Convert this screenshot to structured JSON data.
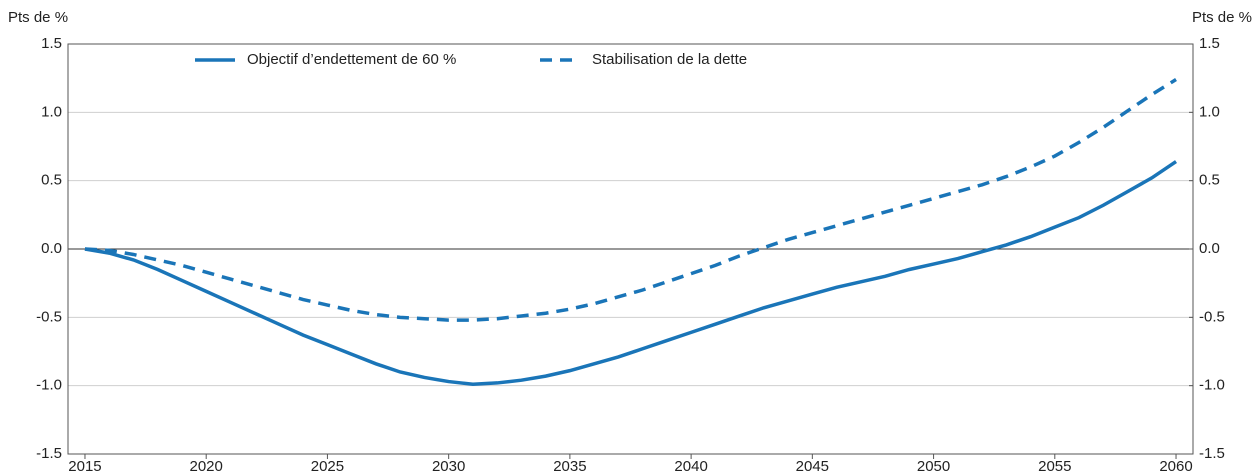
{
  "chart_data": {
    "type": "line",
    "ylabel": "Pts de %",
    "y2label": "Pts de %",
    "x": [
      2015,
      2016,
      2017,
      2018,
      2019,
      2020,
      2021,
      2022,
      2023,
      2024,
      2025,
      2026,
      2027,
      2028,
      2029,
      2030,
      2031,
      2032,
      2033,
      2034,
      2035,
      2036,
      2037,
      2038,
      2039,
      2040,
      2041,
      2042,
      2043,
      2044,
      2045,
      2046,
      2047,
      2048,
      2049,
      2050,
      2051,
      2052,
      2053,
      2054,
      2055,
      2056,
      2057,
      2058,
      2059,
      2060
    ],
    "series": [
      {
        "name": "Objectif d’endettement de 60 %",
        "color": "#1a75b8",
        "dash": false,
        "values": [
          0,
          -0.03,
          -0.08,
          -0.15,
          -0.23,
          -0.31,
          -0.39,
          -0.47,
          -0.55,
          -0.63,
          -0.7,
          -0.77,
          -0.84,
          -0.9,
          -0.94,
          -0.97,
          -0.99,
          -0.98,
          -0.96,
          -0.93,
          -0.89,
          -0.84,
          -0.79,
          -0.73,
          -0.67,
          -0.61,
          -0.55,
          -0.49,
          -0.43,
          -0.38,
          -0.33,
          -0.28,
          -0.24,
          -0.2,
          -0.15,
          -0.11,
          -0.07,
          -0.02,
          0.03,
          0.09,
          0.16,
          0.23,
          0.32,
          0.42,
          0.52,
          0.64
        ]
      },
      {
        "name": "Stabilisation de la dette",
        "color": "#1a75b8",
        "dash": true,
        "values": [
          0,
          -0.01,
          -0.04,
          -0.08,
          -0.12,
          -0.17,
          -0.22,
          -0.27,
          -0.32,
          -0.37,
          -0.41,
          -0.45,
          -0.48,
          -0.5,
          -0.51,
          -0.52,
          -0.52,
          -0.51,
          -0.49,
          -0.47,
          -0.44,
          -0.4,
          -0.35,
          -0.3,
          -0.24,
          -0.18,
          -0.12,
          -0.05,
          0.01,
          0.07,
          0.12,
          0.17,
          0.22,
          0.27,
          0.32,
          0.37,
          0.42,
          0.47,
          0.53,
          0.6,
          0.68,
          0.78,
          0.89,
          1.01,
          1.13,
          1.24
        ]
      }
    ],
    "xlim": [
      2014.3,
      2060.7
    ],
    "xticks": [
      2015,
      2020,
      2025,
      2030,
      2035,
      2040,
      2045,
      2050,
      2055,
      2060
    ],
    "ylim": [
      -1.5,
      1.5
    ],
    "yticks": [
      -1.5,
      {
        "value": -1,
        "label": "-1.0"
      },
      -0.5,
      {
        "value": 0,
        "label": "0.0"
      },
      0.5,
      {
        "value": 1,
        "label": "1.0"
      },
      1.5
    ],
    "y2lim": [
      -1.5,
      1.5
    ],
    "y2ticks": [
      -1.5,
      {
        "value": -1,
        "label": "-1.0"
      },
      -0.5,
      {
        "value": 0,
        "label": "0.0"
      },
      0.5,
      {
        "value": 1,
        "label": "1.0"
      },
      1.5
    ],
    "grid": true,
    "legend": "top"
  }
}
